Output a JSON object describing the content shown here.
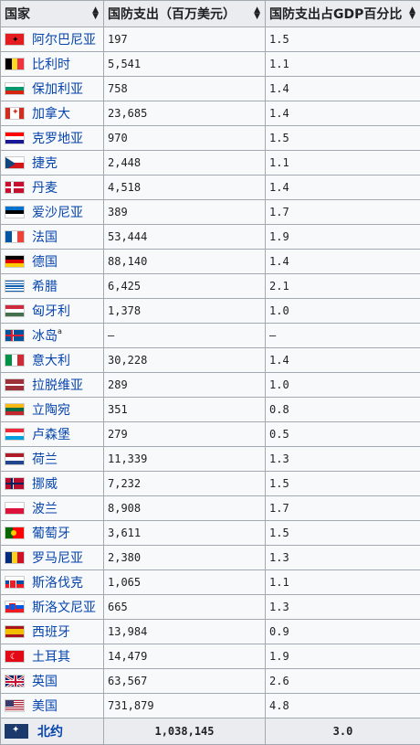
{
  "table": {
    "headers": [
      "国家",
      "国防支出（百万美元）",
      "国防支出占GDP百分比"
    ],
    "rows": [
      {
        "country": "阿尔巴尼亚",
        "flag": "flag-albania",
        "spend": "197",
        "pct": "1.5"
      },
      {
        "country": "比利时",
        "flag": "flag-belgium",
        "spend": "5,541",
        "pct": "1.1"
      },
      {
        "country": "保加利亚",
        "flag": "flag-bulgaria",
        "spend": "758",
        "pct": "1.4"
      },
      {
        "country": "加拿大",
        "flag": "flag-canada",
        "spend": "23,685",
        "pct": "1.4"
      },
      {
        "country": "克罗地亚",
        "flag": "flag-croatia",
        "spend": "970",
        "pct": "1.5"
      },
      {
        "country": "捷克",
        "flag": "flag-czech",
        "spend": "2,448",
        "pct": "1.1"
      },
      {
        "country": "丹麦",
        "flag": "flag-denmark",
        "spend": "4,518",
        "pct": "1.4"
      },
      {
        "country": "爱沙尼亚",
        "flag": "flag-estonia",
        "spend": "389",
        "pct": "1.7"
      },
      {
        "country": "法国",
        "flag": "flag-france",
        "spend": "53,444",
        "pct": "1.9"
      },
      {
        "country": "德国",
        "flag": "flag-germany",
        "spend": "88,140",
        "pct": "1.4"
      },
      {
        "country": "希腊",
        "flag": "flag-greece",
        "spend": "6,425",
        "pct": "2.1"
      },
      {
        "country": "匈牙利",
        "flag": "flag-hungary",
        "spend": "1,378",
        "pct": "1.0"
      },
      {
        "country": "冰岛",
        "note": "a",
        "flag": "flag-iceland",
        "spend": "–",
        "pct": "–"
      },
      {
        "country": "意大利",
        "flag": "flag-italy",
        "spend": "30,228",
        "pct": "1.4"
      },
      {
        "country": "拉脱维亚",
        "flag": "flag-latvia",
        "spend": "289",
        "pct": "1.0"
      },
      {
        "country": "立陶宛",
        "flag": "flag-lithuania",
        "spend": "351",
        "pct": "0.8"
      },
      {
        "country": "卢森堡",
        "flag": "flag-luxembourg",
        "spend": "279",
        "pct": "0.5"
      },
      {
        "country": "荷兰",
        "flag": "flag-netherlands",
        "spend": "11,339",
        "pct": "1.3"
      },
      {
        "country": "挪威",
        "flag": "flag-norway",
        "spend": "7,232",
        "pct": "1.5"
      },
      {
        "country": "波兰",
        "flag": "flag-poland",
        "spend": "8,908",
        "pct": "1.7"
      },
      {
        "country": "葡萄牙",
        "flag": "flag-portugal",
        "spend": "3,611",
        "pct": "1.5"
      },
      {
        "country": "罗马尼亚",
        "flag": "flag-romania",
        "spend": "2,380",
        "pct": "1.3"
      },
      {
        "country": "斯洛伐克",
        "flag": "flag-slovakia",
        "spend": "1,065",
        "pct": "1.1"
      },
      {
        "country": "斯洛文尼亚",
        "flag": "flag-slovenia",
        "spend": "665",
        "pct": "1.3"
      },
      {
        "country": "西班牙",
        "flag": "flag-spain",
        "spend": "13,984",
        "pct": "0.9"
      },
      {
        "country": "土耳其",
        "flag": "flag-turkey",
        "spend": "14,479",
        "pct": "1.9"
      },
      {
        "country": "英国",
        "flag": "flag-uk",
        "spend": "63,567",
        "pct": "2.6"
      },
      {
        "country": "美国",
        "flag": "flag-usa",
        "spend": "731,879",
        "pct": "4.8"
      }
    ],
    "total": {
      "label": "北约",
      "flag": "nato-flag",
      "spend": "1,038,145",
      "pct": "3.0"
    }
  }
}
